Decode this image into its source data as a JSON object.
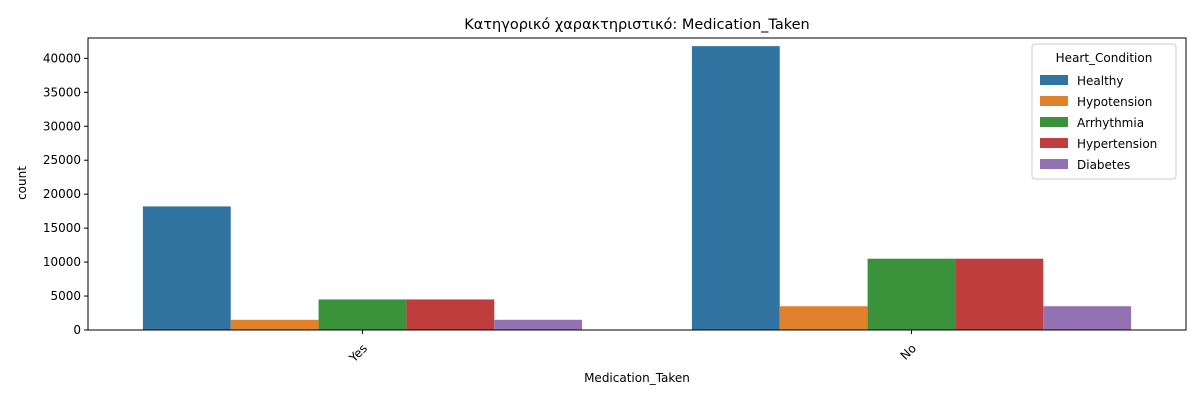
{
  "chart_data": {
    "type": "bar",
    "title": "Κατηγορικό χαρακτηριστικό: Medication_Taken",
    "xlabel": "Medication_Taken",
    "ylabel": "count",
    "categories": [
      "Yes",
      "No"
    ],
    "ylim": [
      0,
      43000
    ],
    "yticks": [
      0,
      5000,
      10000,
      15000,
      20000,
      25000,
      30000,
      35000,
      40000
    ],
    "legend_title": "Heart_Condition",
    "legend_position": "top-right",
    "grid": false,
    "series": [
      {
        "name": "Healthy",
        "color": "#3274a1",
        "values": [
          18200,
          41800
        ]
      },
      {
        "name": "Hypotension",
        "color": "#e1812c",
        "values": [
          1500,
          3500
        ]
      },
      {
        "name": "Arrhythmia",
        "color": "#3a923a",
        "values": [
          4500,
          10500
        ]
      },
      {
        "name": "Hypertension",
        "color": "#c03d3e",
        "values": [
          4500,
          10500
        ]
      },
      {
        "name": "Diabetes",
        "color": "#9372b2",
        "values": [
          1500,
          3500
        ]
      }
    ]
  }
}
